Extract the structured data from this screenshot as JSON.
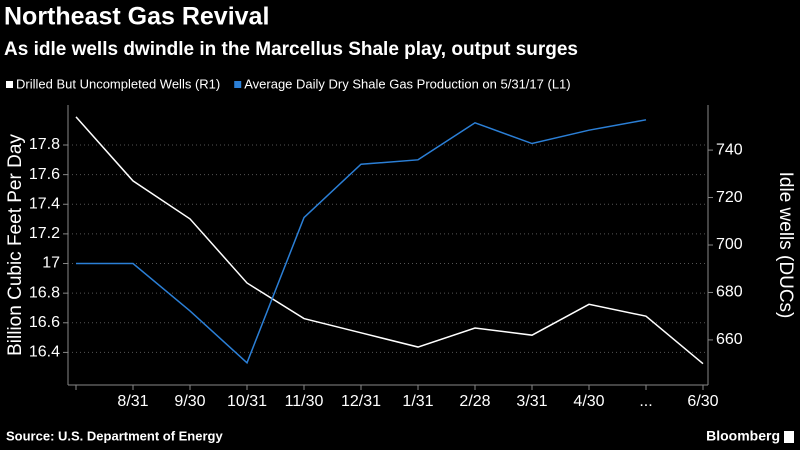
{
  "chart_data": {
    "type": "line",
    "title": "Northeast Gas Revival",
    "subtitle": "As idle wells dwindle in the Marcellus Shale play, output surges",
    "categories": [
      null,
      "8/31",
      "9/30",
      "10/31",
      "11/30",
      "12/31",
      "1/31",
      "2/28",
      "3/31",
      "4/30",
      "...",
      "6/30"
    ],
    "series": [
      {
        "name": "Drilled But Uncompleted Wells (R1)",
        "color": "#ffffff",
        "axis": "y2",
        "values": [
          754,
          727,
          711,
          684,
          669,
          663,
          657,
          665,
          662,
          675,
          670,
          650
        ]
      },
      {
        "name": "Average Daily Dry Shale Gas Production on 5/31/17 (L1)",
        "color": "#2b7fd6",
        "values": [
          17.0,
          17.0,
          16.68,
          16.33,
          17.31,
          17.67,
          17.7,
          17.95,
          17.81,
          17.9,
          17.97,
          null
        ]
      }
    ],
    "ylabel": "Billion Cubic Feet Per Day",
    "y2label": "Idle wells (DUCs)",
    "ylim": [
      16.18,
      18.07
    ],
    "yticks": [
      16.4,
      16.6,
      16.8,
      17.0,
      17.2,
      17.4,
      17.6,
      17.8
    ],
    "y2lim": [
      641,
      759
    ],
    "y2ticks": [
      660,
      680,
      700,
      720,
      740
    ],
    "grid": true,
    "source": "Source: U.S. Department of Energy",
    "brand": "Bloomberg"
  }
}
